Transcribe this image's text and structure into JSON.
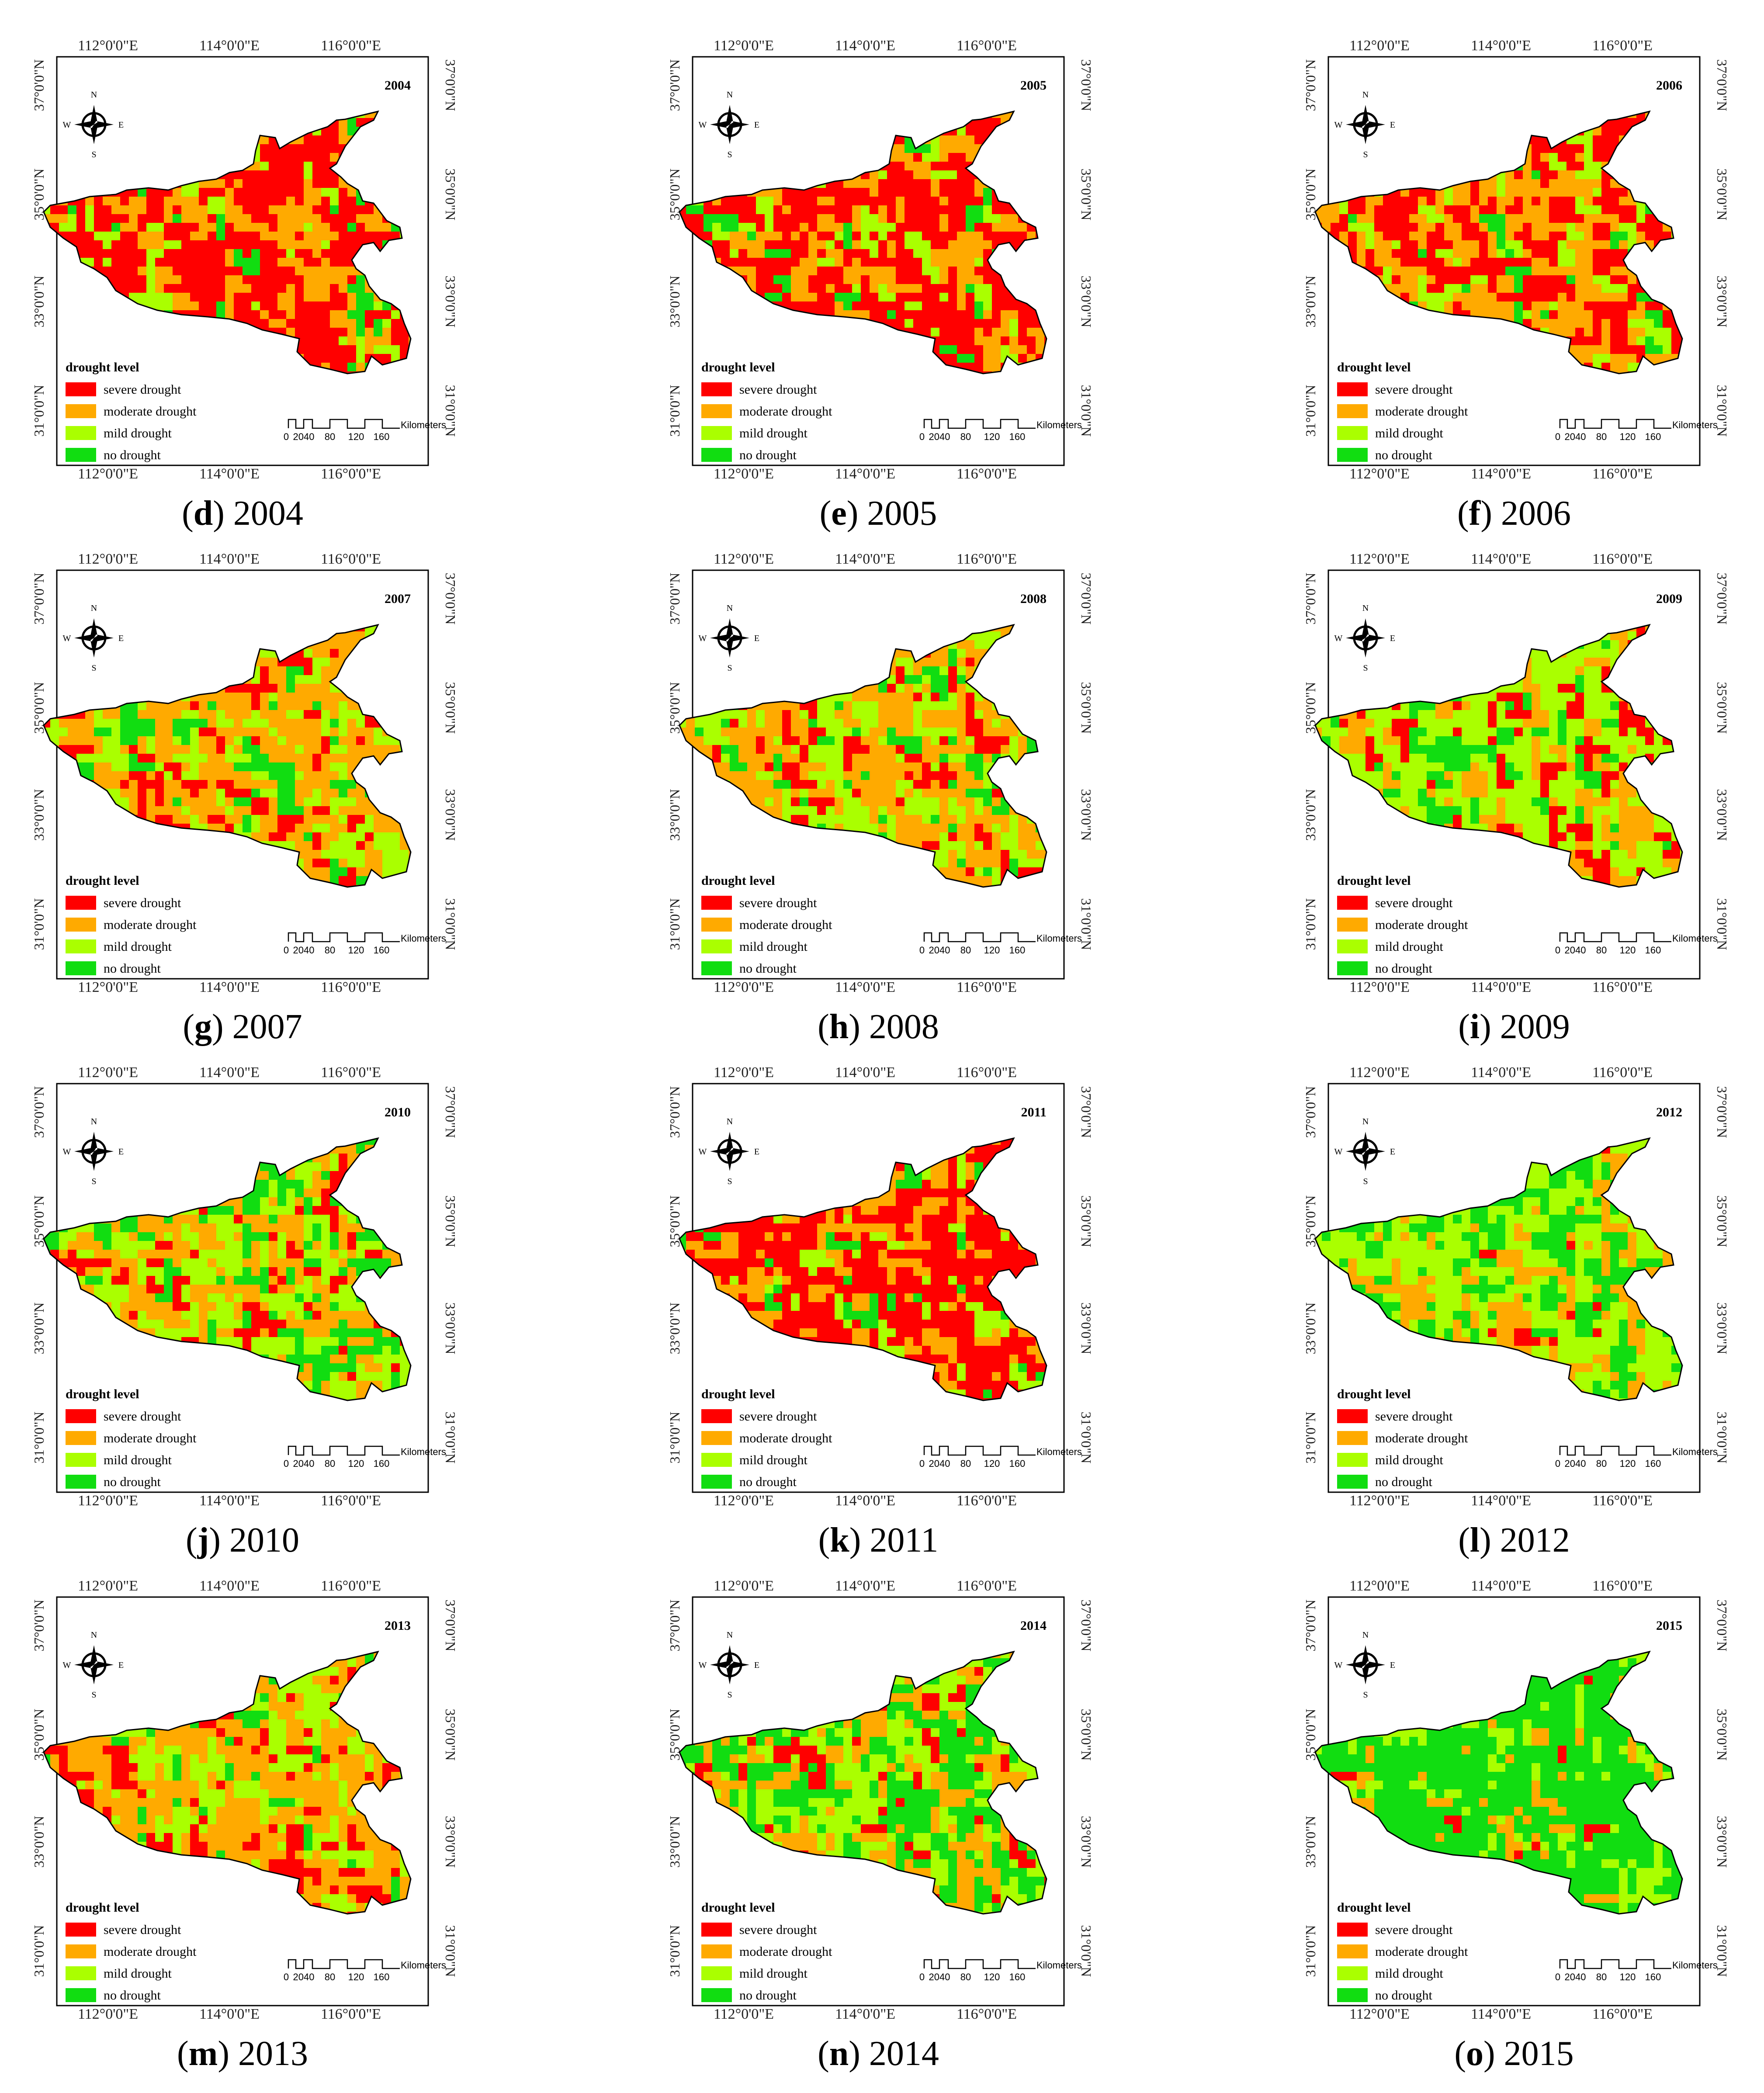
{
  "figure": {
    "panels": [
      {
        "letter": "d",
        "year": "2004",
        "map_title": "2004",
        "dominant_level": "severe"
      },
      {
        "letter": "e",
        "year": "2005",
        "map_title": "2005",
        "dominant_level": "severe"
      },
      {
        "letter": "f",
        "year": "2006",
        "map_title": "2006",
        "dominant_level": "severe-moderate"
      },
      {
        "letter": "g",
        "year": "2007",
        "map_title": "2007",
        "dominant_level": "moderate"
      },
      {
        "letter": "h",
        "year": "2008",
        "map_title": "2008",
        "dominant_level": "moderate-mild"
      },
      {
        "letter": "i",
        "year": "2009",
        "map_title": "2009",
        "dominant_level": "mild"
      },
      {
        "letter": "j",
        "year": "2010",
        "map_title": "2010",
        "dominant_level": "moderate-mild"
      },
      {
        "letter": "k",
        "year": "2011",
        "map_title": "2011",
        "dominant_level": "severe"
      },
      {
        "letter": "l",
        "year": "2012",
        "map_title": "2012",
        "dominant_level": "mild-none"
      },
      {
        "letter": "m",
        "year": "2013",
        "map_title": "2013",
        "dominant_level": "moderate"
      },
      {
        "letter": "n",
        "year": "2014",
        "map_title": "2014",
        "dominant_level": "mixed"
      },
      {
        "letter": "o",
        "year": "2015",
        "map_title": "2015",
        "dominant_level": "none"
      }
    ],
    "axis_labels": {
      "longitude": [
        "112°0'0\"E",
        "114°0'0\"E",
        "116°0'0\"E"
      ],
      "latitude": [
        "37°0'0\"N",
        "35°0'0\"N",
        "33°0'0\"N",
        "31°0'0\"N"
      ]
    },
    "compass": {
      "n": "N",
      "s": "S",
      "e": "E",
      "w": "W"
    },
    "legend": {
      "title": "drought level",
      "items": [
        {
          "label": "severe drought",
          "color": "#ff0000"
        },
        {
          "label": "moderate drought",
          "color": "#ffaa00"
        },
        {
          "label": "mild drought",
          "color": "#aaff00"
        },
        {
          "label": "no drought",
          "color": "#11dd11"
        }
      ]
    },
    "scale_bar": {
      "unit": "Kilometers",
      "ticks": [
        "0",
        "2040",
        "80",
        "120",
        "160"
      ]
    }
  }
}
